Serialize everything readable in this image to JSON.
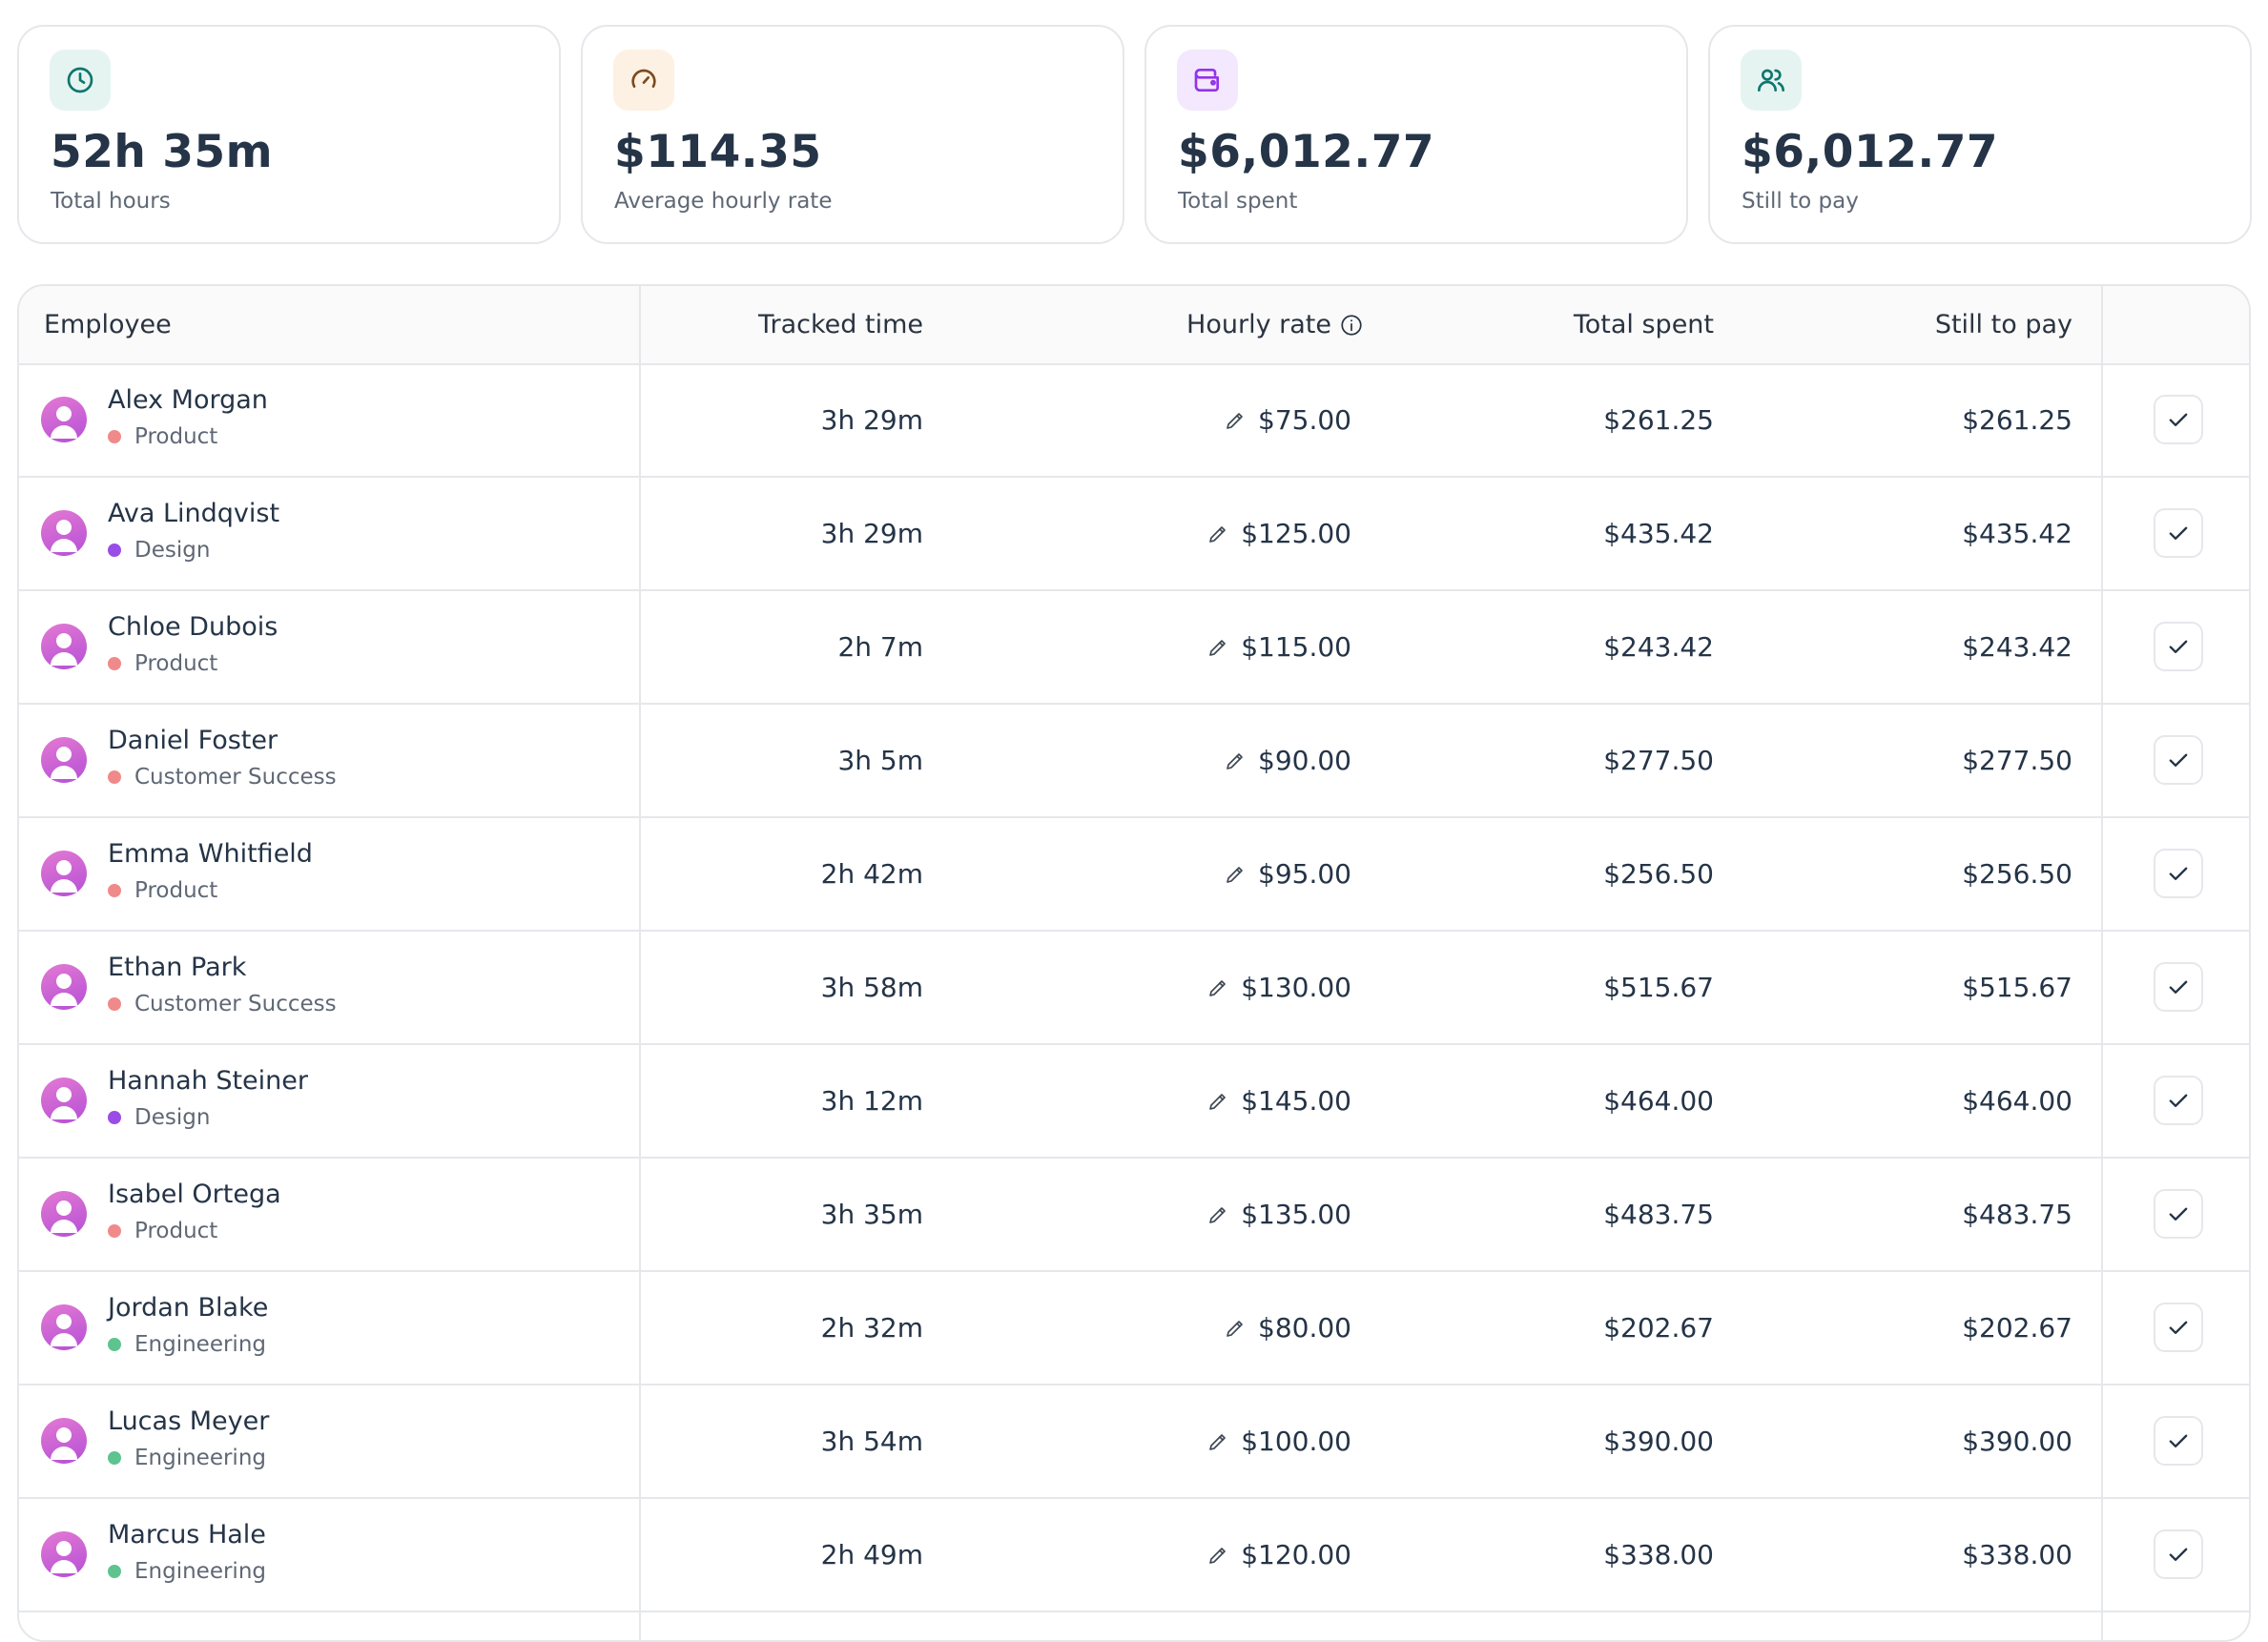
{
  "stats": [
    {
      "icon": "clock-icon",
      "value": "52h 35m",
      "label": "Total hours",
      "bg": "#e6f4f1",
      "fg": "#0f766e"
    },
    {
      "icon": "speedometer-icon",
      "value": "$114.35",
      "label": "Average hourly rate",
      "bg": "#fdf1e3",
      "fg": "#7c4a1e"
    },
    {
      "icon": "wallet-icon",
      "value": "$6,012.77",
      "label": "Total spent",
      "bg": "#f3e8fd",
      "fg": "#9333ea"
    },
    {
      "icon": "users-icon",
      "value": "$6,012.77",
      "label": "Still to pay",
      "bg": "#e6f4f1",
      "fg": "#0f766e"
    }
  ],
  "table": {
    "headers": {
      "employee": "Employee",
      "tracked_time": "Tracked time",
      "hourly_rate": "Hourly rate",
      "total_spent": "Total spent",
      "still_to_pay": "Still to pay"
    },
    "hourly_rate_info_icon": "info-icon",
    "team_colors": {
      "Product": "#f08a8a",
      "Design": "#9a4de6",
      "Customer Success": "#f08a8a",
      "Engineering": "#5dc48f"
    },
    "rows": [
      {
        "name": "Alex Morgan",
        "team": "Product",
        "tracked": "3h 29m",
        "rate": "$75.00",
        "total": "$261.25",
        "due": "$261.25"
      },
      {
        "name": "Ava Lindqvist",
        "team": "Design",
        "tracked": "3h 29m",
        "rate": "$125.00",
        "total": "$435.42",
        "due": "$435.42"
      },
      {
        "name": "Chloe Dubois",
        "team": "Product",
        "tracked": "2h 7m",
        "rate": "$115.00",
        "total": "$243.42",
        "due": "$243.42"
      },
      {
        "name": "Daniel Foster",
        "team": "Customer Success",
        "tracked": "3h 5m",
        "rate": "$90.00",
        "total": "$277.50",
        "due": "$277.50"
      },
      {
        "name": "Emma Whitfield",
        "team": "Product",
        "tracked": "2h 42m",
        "rate": "$95.00",
        "total": "$256.50",
        "due": "$256.50"
      },
      {
        "name": "Ethan Park",
        "team": "Customer Success",
        "tracked": "3h 58m",
        "rate": "$130.00",
        "total": "$515.67",
        "due": "$515.67"
      },
      {
        "name": "Hannah Steiner",
        "team": "Design",
        "tracked": "3h 12m",
        "rate": "$145.00",
        "total": "$464.00",
        "due": "$464.00"
      },
      {
        "name": "Isabel Ortega",
        "team": "Product",
        "tracked": "3h 35m",
        "rate": "$135.00",
        "total": "$483.75",
        "due": "$483.75"
      },
      {
        "name": "Jordan Blake",
        "team": "Engineering",
        "tracked": "2h 32m",
        "rate": "$80.00",
        "total": "$202.67",
        "due": "$202.67"
      },
      {
        "name": "Lucas Meyer",
        "team": "Engineering",
        "tracked": "3h 54m",
        "rate": "$100.00",
        "total": "$390.00",
        "due": "$390.00"
      },
      {
        "name": "Marcus Hale",
        "team": "Engineering",
        "tracked": "2h 49m",
        "rate": "$120.00",
        "total": "$338.00",
        "due": "$338.00"
      }
    ]
  }
}
